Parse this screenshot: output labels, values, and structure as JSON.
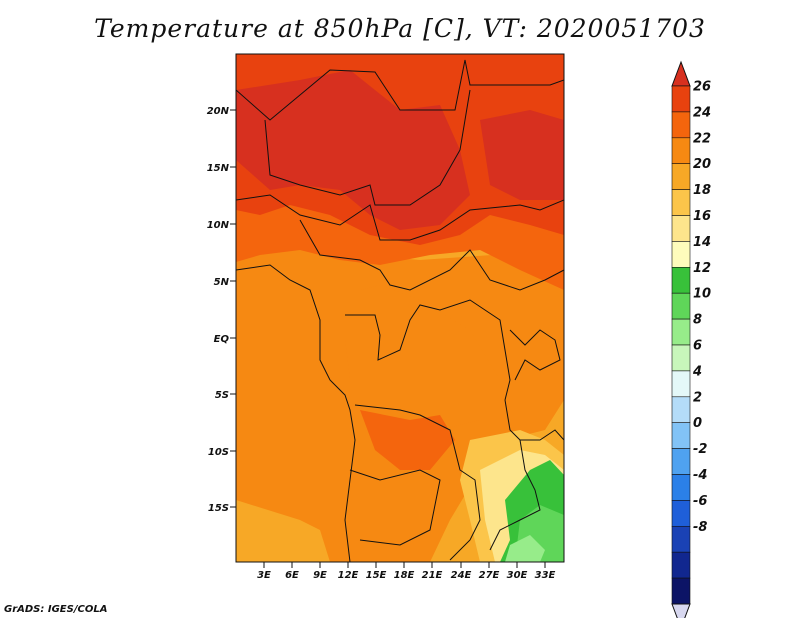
{
  "title": "Temperature at 850hPa [C], VT: 2020051703",
  "credit": "GrADS: IGES/COLA",
  "lat_labels": [
    "20N",
    "15N",
    "10N",
    "5N",
    "EQ",
    "5S",
    "10S",
    "15S"
  ],
  "lon_labels": [
    "3E",
    "6E",
    "9E",
    "12E",
    "15E",
    "18E",
    "21E",
    "24E",
    "27E",
    "30E",
    "33E"
  ],
  "colorbar": {
    "units": "C",
    "labels": [
      "26",
      "24",
      "22",
      "20",
      "18",
      "16",
      "14",
      "12",
      "10",
      "8",
      "6",
      "4",
      "2",
      "0",
      "-2",
      "-4",
      "-6",
      "-8"
    ],
    "colors": [
      "#d7301f",
      "#e8420f",
      "#f4650d",
      "#f68912",
      "#f7a826",
      "#fbc54a",
      "#fde58c",
      "#fefcbc",
      "#38c13a",
      "#5fd659",
      "#97ec8a",
      "#c8f6bb",
      "#e4f8f8",
      "#b4dcf8",
      "#82c3f6",
      "#4fa2f0",
      "#2b80e8",
      "#1f5fd9",
      "#1a42b5",
      "#11278f",
      "#0c1466",
      "#d8d8f0"
    ]
  },
  "map": {
    "colors": {
      "t26": "#d7301f",
      "t24": "#e8420f",
      "t22": "#f4650d",
      "t20": "#f68912",
      "t18": "#f7a826",
      "t16": "#fbc54a",
      "t14": "#fde58c",
      "t12": "#38c13a",
      "t10": "#5fd659",
      "t8": "#97ec8a"
    }
  }
}
